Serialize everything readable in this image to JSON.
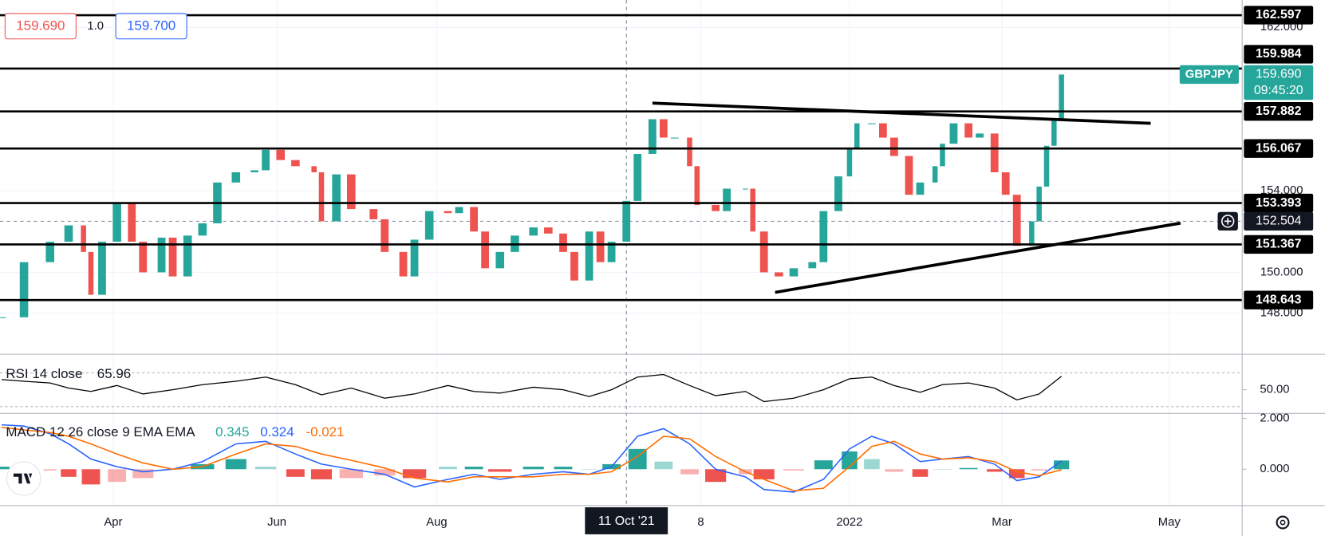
{
  "chart_data": {
    "type": "candlestick",
    "symbol": "GBPJPY",
    "quote": {
      "bid": "159.690",
      "spread": "1.0",
      "ask": "159.700"
    },
    "x": [
      0,
      6,
      13,
      18,
      22,
      24,
      27,
      31,
      35,
      38,
      43,
      46,
      50,
      54,
      58,
      63,
      68,
      71,
      75,
      79,
      84,
      86,
      90,
      94,
      100,
      103,
      108,
      111,
      115,
      120,
      123,
      127,
      130,
      134,
      138,
      143,
      147,
      151,
      154,
      158,
      161,
      164,
      168,
      171,
      175,
      178,
      181,
      185,
      187,
      192,
      195,
      200,
      202,
      205,
      209,
      213,
      218,
      221,
      225,
      228,
      230,
      234,
      237,
      240,
      244,
      247,
      251,
      253,
      256,
      260,
      263,
      267,
      270,
      273,
      277,
      279,
      281,
      283,
      285
    ],
    "values": [
      147.8,
      150.5,
      151.5,
      152.3,
      151.0,
      148.9,
      151.5,
      153.4,
      151.5,
      150.0,
      151.7,
      149.8,
      151.8,
      152.4,
      154.4,
      154.9,
      155.0,
      156.0,
      155.5,
      155.2,
      154.9,
      152.5,
      154.8,
      153.1,
      152.6,
      151.0,
      149.8,
      151.6,
      153.0,
      152.9,
      153.2,
      152.0,
      150.2,
      151.0,
      151.8,
      152.2,
      151.9,
      151.0,
      149.6,
      152.0,
      150.5,
      151.5,
      153.5,
      155.8,
      157.5,
      156.6,
      156.6,
      155.2,
      153.3,
      153.0,
      154.1,
      154.1,
      152.0,
      150.0,
      149.8,
      150.2,
      150.5,
      153.0,
      154.7,
      156.1,
      157.3,
      157.3,
      156.6,
      155.7,
      153.8,
      154.4,
      155.2,
      156.3,
      157.3,
      156.6,
      156.8,
      154.9,
      153.8,
      151.3,
      152.5,
      154.2,
      156.2,
      157.5,
      159.69
    ],
    "up_color": "#26a69a",
    "down_color": "#ef5350",
    "xlim": [
      -0.45,
      333.6
    ],
    "ylim": [
      146.03,
      163.34
    ],
    "xticks": [
      {
        "value": 30,
        "label": "Apr"
      },
      {
        "value": 74,
        "label": "Jun"
      },
      {
        "value": 117,
        "label": "Aug"
      },
      {
        "value": 188,
        "label": "8"
      },
      {
        "value": 228,
        "label": "2022"
      },
      {
        "value": 269,
        "label": "Mar"
      },
      {
        "value": 314,
        "label": "May"
      }
    ],
    "yticks": [
      {
        "value": 162,
        "label": "162.000"
      },
      {
        "value": 154,
        "label": "154.000"
      },
      {
        "value": 150,
        "label": "150.000"
      },
      {
        "value": 148,
        "label": "148.000"
      }
    ],
    "levels": [
      162.597,
      159.984,
      157.882,
      156.067,
      153.393,
      151.367,
      148.643
    ],
    "trendlines": [
      {
        "x": [
          175,
          309
        ],
        "y": [
          158.29,
          157.3
        ]
      },
      {
        "x": [
          208,
          317
        ],
        "y": [
          149.02,
          152.41
        ]
      }
    ],
    "last_price": {
      "value": 159.69,
      "label": "159.690"
    },
    "countdown": "09:45:20",
    "crosshair": {
      "x": {
        "value": 168,
        "label": "11 Oct '21"
      },
      "y": 152.504
    },
    "rsi": {
      "label": "RSI 14 close",
      "color": "#000000",
      "x": [
        0,
        6,
        13,
        18,
        24,
        31,
        38,
        46,
        54,
        63,
        71,
        79,
        86,
        94,
        103,
        111,
        120,
        127,
        134,
        143,
        151,
        158,
        164,
        171,
        178,
        185,
        192,
        200,
        205,
        213,
        221,
        228,
        234,
        240,
        247,
        253,
        260,
        267,
        273,
        279,
        285
      ],
      "values": [
        62,
        60,
        58,
        52,
        48,
        55,
        45,
        50,
        56,
        60,
        65,
        56,
        44,
        52,
        40,
        45,
        55,
        48,
        46,
        53,
        50,
        42,
        50,
        65,
        68,
        55,
        43,
        48,
        36,
        40,
        50,
        63,
        65,
        55,
        47,
        56,
        58,
        52,
        38,
        45,
        65.96
      ],
      "ylim": [
        23,
        91
      ],
      "yticks": [
        {
          "value": 50,
          "label": "50.00"
        }
      ],
      "bands": [
        30,
        70
      ]
    },
    "macd": {
      "label": "MACD 12 26 close 9 EMA EMA",
      "x": [
        0,
        6,
        13,
        18,
        24,
        31,
        38,
        46,
        54,
        63,
        71,
        79,
        86,
        94,
        103,
        111,
        120,
        127,
        134,
        143,
        151,
        158,
        164,
        171,
        178,
        185,
        192,
        200,
        205,
        213,
        221,
        228,
        234,
        240,
        247,
        253,
        260,
        267,
        273,
        279,
        285
      ],
      "ylim": [
        -1.433,
        2.167
      ],
      "yticks": [
        {
          "value": 2,
          "label": "2.000"
        },
        {
          "value": 0,
          "label": "0.000"
        }
      ],
      "histogram": {
        "color": "#26a69a",
        "neg_color": "#ef5350",
        "values": [
          0.1,
          0.15,
          -0.05,
          -0.3,
          -0.6,
          -0.5,
          -0.35,
          0.0,
          0.2,
          0.4,
          0.1,
          -0.3,
          -0.4,
          -0.35,
          -0.25,
          -0.35,
          0.1,
          0.1,
          -0.1,
          0.1,
          0.1,
          0.0,
          0.2,
          0.8,
          0.3,
          -0.2,
          -0.5,
          -0.2,
          -0.4,
          -0.05,
          0.35,
          0.7,
          0.4,
          -0.1,
          -0.3,
          0.0,
          0.05,
          -0.1,
          -0.35,
          -0.05,
          0.345
        ]
      },
      "macd": {
        "color": "#2962ff",
        "values": [
          1.75,
          1.7,
          1.4,
          1.0,
          0.4,
          0.1,
          -0.1,
          0.0,
          0.3,
          1.0,
          1.1,
          0.6,
          0.2,
          0.0,
          -0.2,
          -0.7,
          -0.4,
          -0.2,
          -0.4,
          -0.2,
          -0.1,
          -0.2,
          0.1,
          1.3,
          1.6,
          1.0,
          0.0,
          -0.3,
          -0.8,
          -0.9,
          -0.4,
          0.8,
          1.3,
          1.0,
          0.3,
          0.4,
          0.5,
          0.2,
          -0.45,
          -0.3,
          0.324
        ]
      },
      "signal": {
        "color": "#ff6d00",
        "values": [
          1.65,
          1.55,
          1.45,
          1.3,
          1.0,
          0.6,
          0.25,
          0.0,
          0.1,
          0.6,
          1.0,
          0.9,
          0.6,
          0.35,
          0.05,
          -0.35,
          -0.5,
          -0.3,
          -0.3,
          -0.3,
          -0.2,
          -0.2,
          -0.1,
          0.5,
          1.3,
          1.2,
          0.5,
          -0.1,
          -0.4,
          -0.85,
          -0.75,
          0.1,
          0.9,
          1.1,
          0.6,
          0.4,
          0.45,
          0.3,
          -0.1,
          -0.25,
          -0.021
        ]
      }
    }
  }
}
